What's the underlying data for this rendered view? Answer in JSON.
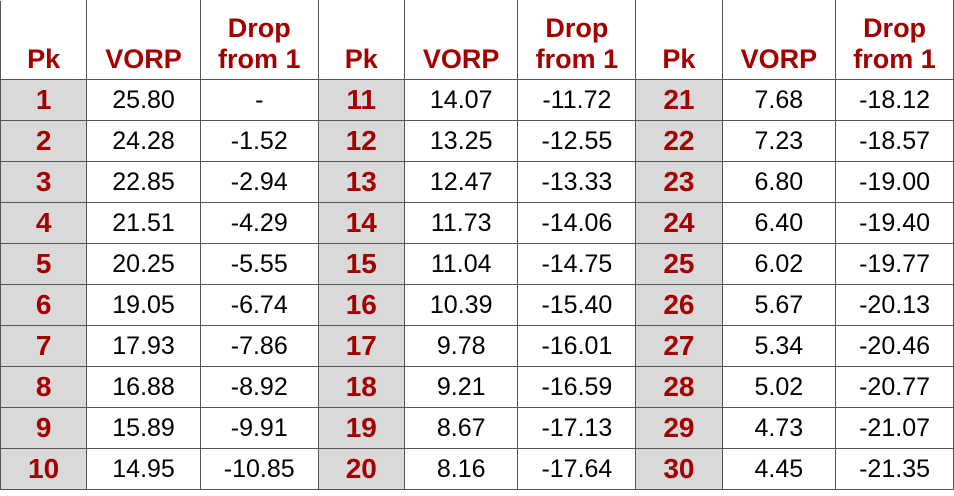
{
  "chart_data": {
    "type": "table",
    "columns": [
      "Pk",
      "VORP",
      "Drop from 1",
      "Pk",
      "VORP",
      "Drop from 1",
      "Pk",
      "VORP",
      "Drop from 1"
    ],
    "header_groups": [
      {
        "pk": "Pk",
        "vorp": "VORP",
        "drop_line1": "Drop",
        "drop_line2": "from 1"
      },
      {
        "pk": "Pk",
        "vorp": "VORP",
        "drop_line1": "Drop",
        "drop_line2": "from 1"
      },
      {
        "pk": "Pk",
        "vorp": "VORP",
        "drop_line1": "Drop",
        "drop_line2": "from 1"
      }
    ],
    "rows": [
      [
        "1",
        "25.80",
        "-",
        "11",
        "14.07",
        "-11.72",
        "21",
        "7.68",
        "-18.12"
      ],
      [
        "2",
        "24.28",
        "-1.52",
        "12",
        "13.25",
        "-12.55",
        "22",
        "7.23",
        "-18.57"
      ],
      [
        "3",
        "22.85",
        "-2.94",
        "13",
        "12.47",
        "-13.33",
        "23",
        "6.80",
        "-19.00"
      ],
      [
        "4",
        "21.51",
        "-4.29",
        "14",
        "11.73",
        "-14.06",
        "24",
        "6.40",
        "-19.40"
      ],
      [
        "5",
        "20.25",
        "-5.55",
        "15",
        "11.04",
        "-14.75",
        "25",
        "6.02",
        "-19.77"
      ],
      [
        "6",
        "19.05",
        "-6.74",
        "16",
        "10.39",
        "-15.40",
        "26",
        "5.67",
        "-20.13"
      ],
      [
        "7",
        "17.93",
        "-7.86",
        "17",
        "9.78",
        "-16.01",
        "27",
        "5.34",
        "-20.46"
      ],
      [
        "8",
        "16.88",
        "-8.92",
        "18",
        "9.21",
        "-16.59",
        "28",
        "5.02",
        "-20.77"
      ],
      [
        "9",
        "15.89",
        "-9.91",
        "19",
        "8.67",
        "-17.13",
        "29",
        "4.73",
        "-21.07"
      ],
      [
        "10",
        "14.95",
        "-10.85",
        "20",
        "8.16",
        "-17.64",
        "30",
        "4.45",
        "-21.35"
      ]
    ]
  },
  "colors": {
    "header_text": "#a40000",
    "pick_text": "#a40000",
    "pick_background": "#d9d9d9",
    "grid": "#555555"
  }
}
